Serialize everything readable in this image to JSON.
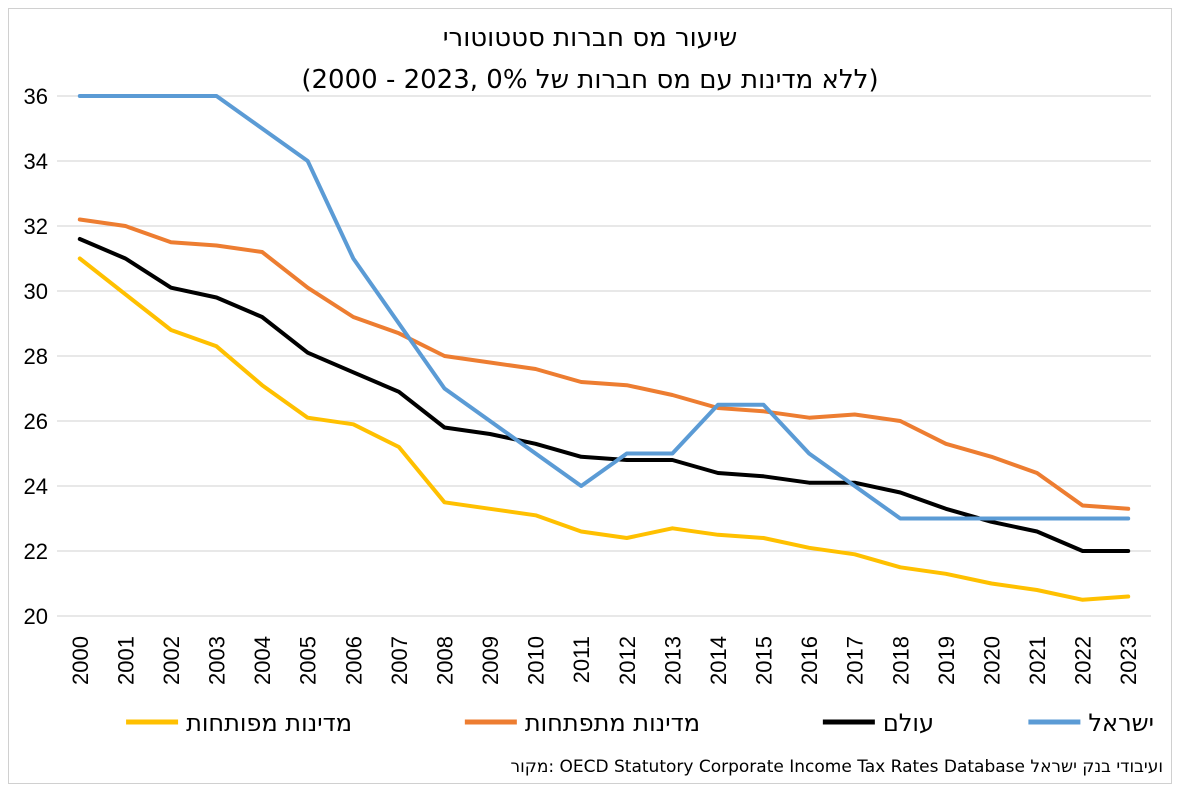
{
  "chart_data": {
    "type": "line",
    "title": "שיעור מס חברות סטטוטורי",
    "subtitle": "(2000 - 2023, ללא מדינות עם מס חברות של 0%)",
    "x": [
      "2000",
      "2001",
      "2002",
      "2003",
      "2004",
      "2005",
      "2006",
      "2007",
      "2008",
      "2009",
      "2010",
      "2011",
      "2012",
      "2013",
      "2014",
      "2015",
      "2016",
      "2017",
      "2018",
      "2019",
      "2020",
      "2021",
      "2022",
      "2023"
    ],
    "ylim": [
      20,
      36
    ],
    "yticks": [
      "20",
      "22",
      "24",
      "26",
      "28",
      "30",
      "32",
      "34",
      "36"
    ],
    "grid": true,
    "legend_position": "bottom",
    "series": [
      {
        "name": "ישראל",
        "color": "#5b9bd5",
        "values": [
          36,
          36,
          36,
          36,
          35,
          34,
          31,
          29,
          27,
          26,
          25,
          24,
          25,
          25,
          26.5,
          26.5,
          25,
          24,
          23,
          23,
          23,
          23,
          23,
          23
        ]
      },
      {
        "name": "עולם",
        "color": "#000000",
        "values": [
          31.6,
          31.0,
          30.1,
          29.8,
          29.2,
          28.1,
          27.5,
          26.9,
          25.8,
          25.6,
          25.3,
          24.9,
          24.8,
          24.8,
          24.4,
          24.3,
          24.1,
          24.1,
          23.8,
          23.3,
          22.9,
          22.6,
          22.0,
          22.0
        ]
      },
      {
        "name": "מדינות מתפתחות",
        "color": "#ed7d31",
        "values": [
          32.2,
          32.0,
          31.5,
          31.4,
          31.2,
          30.1,
          29.2,
          28.7,
          28.0,
          27.8,
          27.6,
          27.2,
          27.1,
          26.8,
          26.4,
          26.3,
          26.1,
          26.2,
          26.0,
          25.3,
          24.9,
          24.4,
          23.4,
          23.3
        ]
      },
      {
        "name": "מדינות מפותחות",
        "color": "#ffc000",
        "values": [
          31.0,
          29.9,
          28.8,
          28.3,
          27.1,
          26.1,
          25.9,
          25.2,
          23.5,
          23.3,
          23.1,
          22.6,
          22.4,
          22.7,
          22.5,
          22.4,
          22.1,
          21.9,
          21.5,
          21.3,
          21.0,
          20.8,
          20.5,
          20.6
        ]
      }
    ],
    "legend_order": [
      "מדינות מפותחות",
      "מדינות מתפתחות",
      "עולם",
      "ישראל"
    ],
    "source": "מקור: OECD Statutory Corporate Income Tax Rates Database ועיבודי בנק ישראל"
  }
}
